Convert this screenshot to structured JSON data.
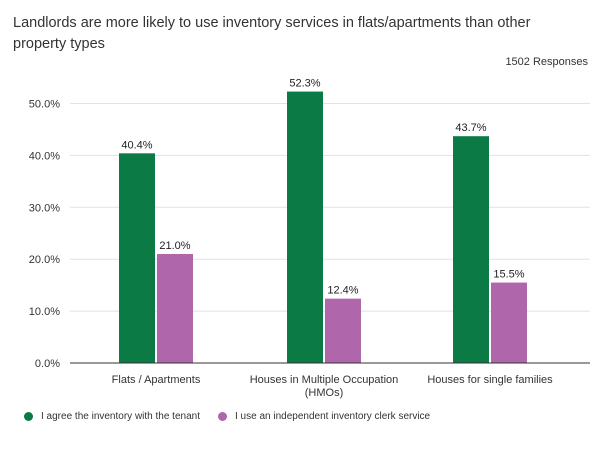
{
  "title": "Landlords are more likely to use inventory services in flats/apartments than other property types",
  "responses": "1502 Responses",
  "chart_data": {
    "type": "bar",
    "categories": [
      [
        "Flats / Apartments"
      ],
      [
        "Houses in Multiple Occupation",
        "(HMOs)"
      ],
      [
        "Houses for single families"
      ]
    ],
    "series": [
      {
        "name": "I agree the inventory with the tenant",
        "color": "#0c7a45",
        "values": [
          40.4,
          52.3,
          43.7
        ],
        "labels": [
          "40.4%",
          "52.3%",
          "43.7%"
        ]
      },
      {
        "name": "I use an independent inventory clerk service",
        "color": "#b066aa",
        "values": [
          21.0,
          12.4,
          15.5
        ],
        "labels": [
          "21.0%",
          "12.4%",
          "15.5%"
        ]
      }
    ],
    "yticks": [
      0,
      10,
      20,
      30,
      40,
      50
    ],
    "ytick_labels": [
      "0.0%",
      "10.0%",
      "20.0%",
      "30.0%",
      "40.0%",
      "50.0%"
    ],
    "ylim": [
      0,
      52.3
    ],
    "grid": true,
    "legend_position": "bottom-left"
  }
}
